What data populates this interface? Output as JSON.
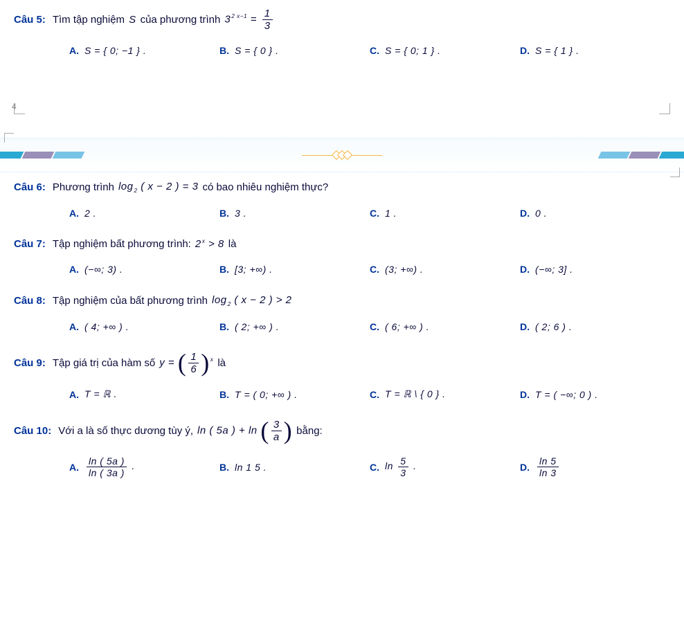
{
  "colors": {
    "accent": "#003399",
    "text": "#0a0a3a",
    "background": "#ffffff",
    "banner_bg_top": "#f6fbfd",
    "banner_border": "#e6f2f8",
    "diamond": "#f3b94a",
    "corner": "#aaaaaa"
  },
  "page_marker": "4",
  "banner": {
    "left_stripe_colors": [
      "#2aa9d2",
      "#9a8fb8",
      "#78c4e6"
    ],
    "right_stripe_colors": [
      "#78c4e6",
      "#9a8fb8",
      "#2aa9d2"
    ],
    "diamond_color": "#f3b94a",
    "diamond_count": 3
  },
  "questions": [
    {
      "id": "q5",
      "label": "Câu 5:",
      "text_pre": "Tìm tập nghiệm ",
      "text_var": "S",
      "text_mid": " của phương trình ",
      "math_html": "3<span class='sup'>2 x−1</span> = <span class='frac'><span class='num'>1</span><span class='den'>3</span></span>",
      "options": [
        {
          "label": "A.",
          "val": "S = { 0; −1 } ."
        },
        {
          "label": "B.",
          "val": "S = { 0 } ."
        },
        {
          "label": "C.",
          "val": "S = { 0; 1 } ."
        },
        {
          "label": "D.",
          "val": "S = { 1 } ."
        }
      ]
    },
    {
      "id": "q6",
      "label": "Câu 6:",
      "text_pre": "Phương trình ",
      "math_html": "log<span class='sub'>2</span> ( x − 2 ) = 3",
      "text_post": " có bao nhiêu nghiệm thực?",
      "options": [
        {
          "label": "A.",
          "val": "2 ."
        },
        {
          "label": "B.",
          "val": "3 ."
        },
        {
          "label": "C.",
          "val": "1 ."
        },
        {
          "label": "D.",
          "val": "0 ."
        }
      ]
    },
    {
      "id": "q7",
      "label": "Câu 7:",
      "text_pre": "Tập nghiệm bất phương trình: ",
      "math_html": "2<span class='sup'>x</span> > 8",
      "text_post": " là",
      "options": [
        {
          "label": "A.",
          "val": "(−∞; 3) ."
        },
        {
          "label": "B.",
          "val": "[3; +∞) ."
        },
        {
          "label": "C.",
          "val": "(3; +∞) ."
        },
        {
          "label": "D.",
          "val": "(−∞; 3] ."
        }
      ]
    },
    {
      "id": "q8",
      "label": "Câu 8:",
      "text_pre": "Tập nghiệm của bất phương trình ",
      "math_html": "log<span class='sub'>2</span> ( x − 2 ) > 2",
      "options": [
        {
          "label": "A.",
          "val": "( 4; +∞ ) ."
        },
        {
          "label": "B.",
          "val": "( 2; +∞ ) ."
        },
        {
          "label": "C.",
          "val": "( 6; +∞ ) ."
        },
        {
          "label": "D.",
          "val": "( 2; 6 ) ."
        }
      ]
    },
    {
      "id": "q9",
      "label": "Câu 9:",
      "text_pre": "Tập giá trị của hàm số ",
      "math_html": "y = <span class='bigparen'><span class='paren'>(</span><span class='frac'><span class='num'>1</span><span class='den'>6</span></span><span class='paren'>)</span></span><span class='sup'>x</span>",
      "text_post": " là",
      "options": [
        {
          "label": "A.",
          "val": "T = ℝ ."
        },
        {
          "label": "B.",
          "val": "T = ( 0; +∞ ) ."
        },
        {
          "label": "C.",
          "val": "T = ℝ \\ { 0 } ."
        },
        {
          "label": "D.",
          "val": "T = ( −∞; 0 ) ."
        }
      ]
    },
    {
      "id": "q10",
      "label": "Câu 10:",
      "text_pre": "Với a là số thực dương tùy ý, ",
      "math_html": "ln ( 5a ) + ln <span class='bigparen'><span class='paren'>(</span><span class='frac'><span class='num'>3</span><span class='den'>a</span></span><span class='paren'>)</span></span>",
      "text_post": " bằng:",
      "options": [
        {
          "label": "A.",
          "html": "<span class='frac'><span class='num'>ln ( 5a )</span><span class='den'>ln ( 3a )</span></span> ."
        },
        {
          "label": "B.",
          "val": "ln 1 5 ."
        },
        {
          "label": "C.",
          "html": "ln <span class='frac'><span class='num'>5</span><span class='den'>3</span></span> ."
        },
        {
          "label": "D.",
          "html": "<span class='frac'><span class='num'>ln 5</span><span class='den'>ln 3</span></span>"
        }
      ]
    }
  ]
}
